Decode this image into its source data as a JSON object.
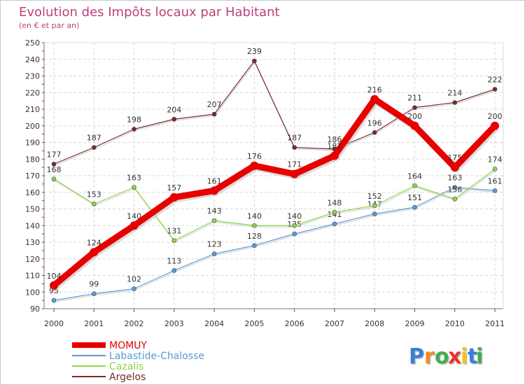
{
  "chart_data": {
    "type": "line",
    "title": "Evolution des Impôts locaux par Habitant",
    "subtitle": "(en € et par an)",
    "categories": [
      "2000",
      "2001",
      "2002",
      "2003",
      "2004",
      "2005",
      "2006",
      "2007",
      "2008",
      "2009",
      "2010",
      "2011"
    ],
    "ylim": [
      90,
      250
    ],
    "yticks": [
      90,
      100,
      110,
      120,
      130,
      140,
      150,
      160,
      170,
      180,
      190,
      200,
      210,
      220,
      230,
      240,
      250
    ],
    "grid": true,
    "legend_position": "bottom-left",
    "series": [
      {
        "name": "MOMUY",
        "color": "#e60000",
        "values": [
          104,
          124,
          140,
          157,
          161,
          176,
          171,
          182,
          216,
          200,
          175,
          200
        ],
        "labels": [
          "104",
          "124",
          "140",
          "157",
          "161",
          "176",
          "171",
          "182",
          "216",
          "200",
          "175",
          "200"
        ]
      },
      {
        "name": "Labastide-Chalosse",
        "color": "#5b9bd5",
        "values": [
          95,
          99,
          102,
          113,
          123,
          128,
          135,
          141,
          147,
          151,
          163,
          161
        ],
        "labels": [
          "95",
          "99",
          "102",
          "113",
          "123",
          "128",
          "135",
          "141",
          "147",
          "151",
          "163",
          "161"
        ]
      },
      {
        "name": "Cazalis",
        "color": "#8fd44a",
        "values": [
          168,
          153,
          163,
          131,
          143,
          140,
          140,
          148,
          152,
          164,
          156,
          174
        ],
        "labels": [
          "168",
          "153",
          "163",
          "131",
          "143",
          "140",
          "140",
          "148",
          "152",
          "164",
          "156",
          "174"
        ]
      },
      {
        "name": "Argelos",
        "color": "#7a2a2a",
        "values": [
          177,
          187,
          198,
          204,
          207,
          239,
          187,
          186,
          196,
          211,
          214,
          222
        ],
        "labels": [
          "177",
          "187",
          "198",
          "204",
          "207",
          "239",
          "187",
          "186",
          "196",
          "211",
          "214",
          "222"
        ]
      }
    ]
  },
  "logo": {
    "text": "Proxiti",
    "letters": [
      "P",
      "r",
      "o",
      "x",
      "i",
      "t",
      "i"
    ],
    "colors": [
      "#3b7dd8",
      "#f08a1c",
      "#3fae49",
      "#e8342f",
      "#f4c21c",
      "#3b7dd8",
      "#3fae49"
    ]
  }
}
